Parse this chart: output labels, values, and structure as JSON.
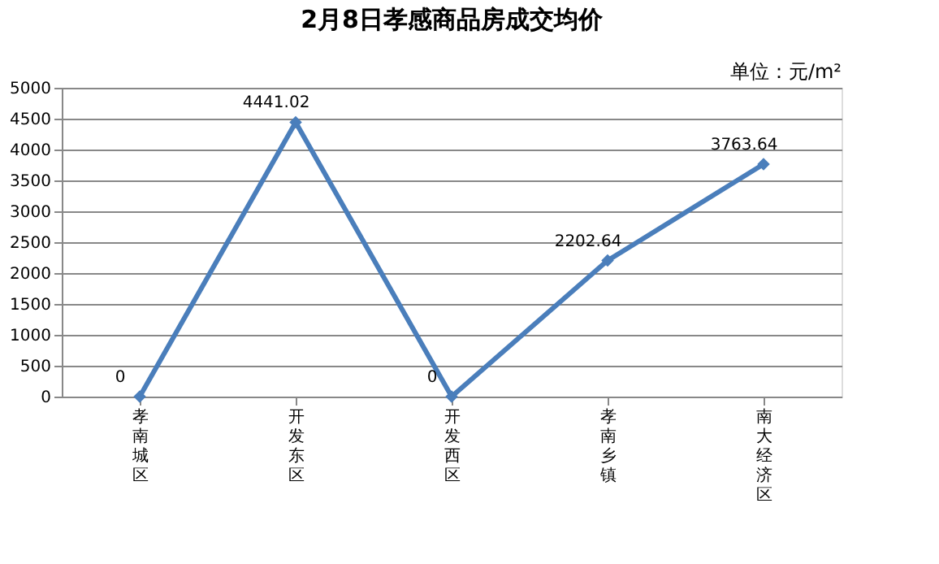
{
  "chart_data": {
    "type": "line",
    "title": "2月8日孝感商品房成交均价",
    "annotations": [
      "单位：元/m²"
    ],
    "categories": [
      "孝南城区",
      "开发东区",
      "开发西区",
      "孝南乡镇",
      "南大经济区"
    ],
    "series": [
      {
        "color": "#4a7ebb",
        "values": [
          0,
          4441.02,
          0,
          2202.64,
          3763.64
        ]
      }
    ],
    "ylim": [
      0,
      5000
    ],
    "yticks": [
      0,
      500,
      1000,
      1500,
      2000,
      2500,
      3000,
      3500,
      4000,
      4500,
      5000
    ],
    "grid": "y",
    "marker": "diamond",
    "line_style": "solid",
    "data_labels": true
  }
}
